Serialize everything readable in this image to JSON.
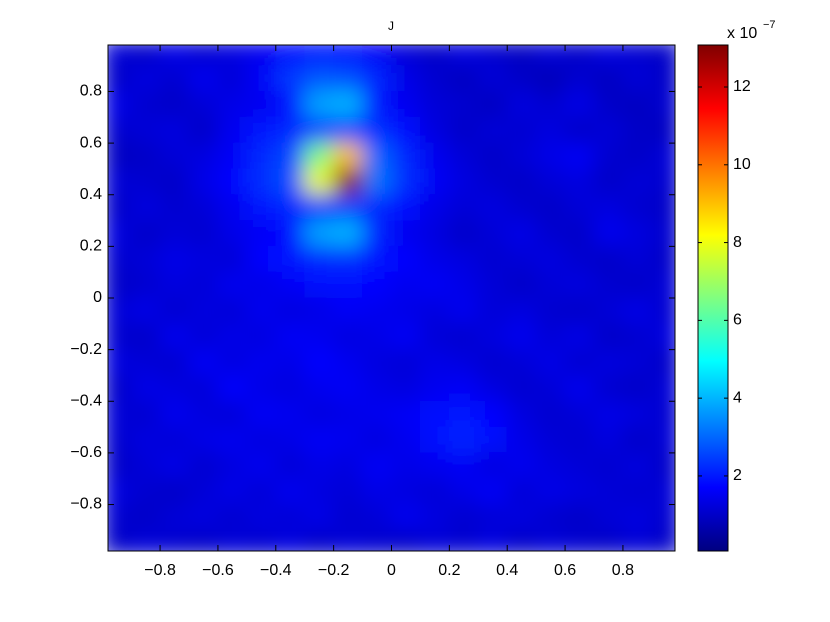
{
  "chart_data": {
    "type": "heatmap",
    "title": "J",
    "x": [
      -0.95,
      -0.85,
      -0.75,
      -0.65,
      -0.55,
      -0.45,
      -0.35,
      -0.25,
      -0.15,
      -0.05,
      0.05,
      0.15,
      0.25,
      0.35,
      0.45,
      0.55,
      0.65,
      0.75,
      0.85,
      0.95
    ],
    "y": [
      0.95,
      0.85,
      0.75,
      0.65,
      0.55,
      0.45,
      0.35,
      0.25,
      0.15,
      0.05,
      -0.05,
      -0.15,
      -0.25,
      -0.35,
      -0.45,
      -0.55,
      -0.65,
      -0.75,
      -0.85,
      -0.95
    ],
    "z": [
      [
        1.2,
        1.0,
        1.4,
        1.1,
        1.3,
        1.5,
        1.8,
        2.0,
        1.9,
        1.6,
        1.2,
        1.0,
        1.3,
        1.1,
        0.9,
        1.2,
        1.0,
        1.3,
        1.1,
        1.0
      ],
      [
        1.0,
        1.3,
        1.1,
        1.5,
        1.2,
        1.6,
        2.4,
        2.8,
        2.7,
        2.2,
        1.4,
        1.1,
        0.9,
        1.2,
        1.0,
        0.8,
        1.1,
        0.9,
        1.2,
        1.0
      ],
      [
        1.4,
        1.1,
        1.0,
        1.2,
        1.4,
        1.5,
        1.8,
        3.8,
        4.0,
        2.0,
        1.5,
        1.2,
        1.1,
        0.9,
        1.3,
        1.1,
        1.4,
        1.0,
        0.9,
        1.1
      ],
      [
        1.1,
        1.2,
        1.3,
        1.0,
        1.5,
        2.0,
        2.2,
        2.5,
        2.6,
        2.3,
        1.9,
        1.3,
        1.0,
        1.2,
        1.1,
        1.3,
        1.0,
        1.2,
        1.0,
        0.9
      ],
      [
        0.9,
        1.0,
        1.2,
        1.3,
        1.6,
        2.2,
        2.6,
        6.5,
        9.0,
        3.0,
        2.2,
        1.5,
        1.2,
        1.0,
        1.2,
        1.4,
        1.6,
        1.1,
        1.0,
        1.2
      ],
      [
        1.2,
        1.1,
        1.0,
        1.4,
        1.7,
        2.3,
        2.7,
        8.0,
        13.0,
        3.2,
        2.3,
        1.6,
        1.3,
        1.1,
        1.0,
        1.2,
        1.3,
        1.0,
        1.2,
        1.1
      ],
      [
        1.0,
        1.3,
        1.1,
        1.2,
        1.5,
        2.0,
        2.2,
        2.4,
        2.5,
        2.2,
        1.9,
        1.4,
        1.2,
        1.3,
        1.1,
        1.0,
        1.2,
        1.3,
        1.1,
        1.0
      ],
      [
        1.3,
        1.0,
        1.2,
        1.1,
        1.4,
        1.6,
        1.9,
        3.8,
        4.0,
        2.1,
        1.5,
        1.3,
        1.0,
        1.2,
        1.4,
        1.1,
        1.0,
        1.5,
        1.3,
        1.1
      ],
      [
        1.1,
        1.2,
        1.4,
        1.3,
        1.2,
        1.7,
        2.0,
        2.2,
        2.3,
        2.0,
        1.7,
        1.4,
        1.3,
        1.1,
        1.2,
        1.3,
        1.1,
        1.0,
        1.2,
        1.0
      ],
      [
        1.0,
        1.1,
        1.3,
        1.2,
        1.5,
        1.4,
        1.6,
        1.8,
        1.9,
        1.7,
        1.5,
        1.6,
        1.4,
        1.2,
        1.0,
        1.2,
        1.3,
        1.1,
        1.0,
        1.2
      ],
      [
        1.2,
        1.4,
        1.1,
        1.3,
        1.2,
        1.5,
        1.3,
        1.4,
        1.6,
        1.5,
        1.4,
        1.3,
        1.5,
        1.2,
        1.3,
        1.1,
        1.0,
        1.2,
        1.4,
        1.1
      ],
      [
        1.1,
        1.0,
        1.5,
        1.2,
        1.4,
        1.3,
        1.6,
        1.5,
        1.3,
        1.4,
        1.6,
        1.2,
        1.1,
        1.3,
        1.5,
        1.2,
        1.4,
        1.0,
        1.1,
        1.3
      ],
      [
        1.3,
        1.2,
        1.1,
        1.6,
        1.3,
        1.5,
        1.4,
        1.7,
        1.5,
        1.3,
        1.2,
        1.4,
        1.3,
        1.1,
        1.2,
        1.4,
        1.1,
        1.3,
        1.2,
        1.0
      ],
      [
        1.0,
        1.4,
        1.3,
        1.2,
        1.7,
        1.4,
        1.3,
        1.5,
        1.6,
        1.4,
        1.3,
        1.5,
        1.6,
        1.3,
        1.1,
        1.2,
        1.5,
        1.1,
        1.0,
        1.2
      ],
      [
        1.2,
        1.1,
        1.5,
        1.3,
        1.2,
        1.6,
        1.5,
        1.3,
        1.4,
        1.5,
        1.6,
        1.8,
        2.0,
        1.7,
        1.3,
        1.1,
        1.2,
        1.4,
        1.3,
        1.1
      ],
      [
        1.1,
        1.3,
        1.2,
        1.4,
        1.5,
        1.3,
        1.4,
        1.6,
        1.5,
        1.3,
        1.5,
        1.9,
        2.2,
        1.8,
        1.4,
        1.2,
        1.1,
        1.3,
        1.0,
        1.2
      ],
      [
        1.0,
        1.2,
        1.4,
        1.1,
        1.3,
        1.5,
        1.2,
        1.4,
        1.3,
        1.6,
        1.4,
        1.5,
        1.6,
        1.3,
        1.5,
        1.3,
        1.2,
        1.1,
        1.3,
        1.0
      ],
      [
        1.3,
        1.1,
        1.0,
        1.2,
        1.4,
        1.2,
        1.5,
        1.3,
        1.2,
        1.4,
        1.3,
        1.2,
        1.4,
        1.6,
        1.2,
        1.4,
        1.3,
        1.2,
        1.1,
        1.2
      ],
      [
        1.1,
        1.0,
        1.2,
        1.3,
        1.1,
        1.3,
        1.2,
        1.4,
        1.1,
        1.2,
        1.5,
        1.3,
        1.1,
        1.2,
        1.3,
        1.1,
        1.0,
        1.2,
        1.3,
        1.1
      ],
      [
        1.0,
        1.2,
        1.1,
        1.0,
        1.2,
        1.1,
        1.3,
        1.0,
        1.2,
        1.1,
        1.0,
        1.2,
        1.1,
        1.3,
        1.0,
        1.2,
        1.1,
        1.0,
        1.2,
        1.0
      ]
    ],
    "xlim": [
      -0.98,
      0.98
    ],
    "ylim": [
      -0.98,
      0.98
    ],
    "xticks": [
      {
        "value": -0.8,
        "label": "−0.8"
      },
      {
        "value": -0.6,
        "label": "−0.6"
      },
      {
        "value": -0.4,
        "label": "−0.4"
      },
      {
        "value": -0.2,
        "label": "−0.2"
      },
      0,
      0.2,
      0.4,
      0.6,
      0.8
    ],
    "yticks": [
      {
        "value": -0.8,
        "label": "−0.8"
      },
      {
        "value": -0.6,
        "label": "−0.6"
      },
      {
        "value": -0.4,
        "label": "−0.4"
      },
      {
        "value": -0.2,
        "label": "−0.2"
      },
      0,
      0.2,
      0.4,
      0.6,
      0.8
    ],
    "colormap": "jet",
    "clim": [
      0.07,
      13.08
    ],
    "colorbar_ticks": [
      2,
      4,
      6,
      8,
      10,
      12
    ],
    "colorbar_scale": {
      "base": "x 10",
      "exponent": "−7"
    }
  }
}
